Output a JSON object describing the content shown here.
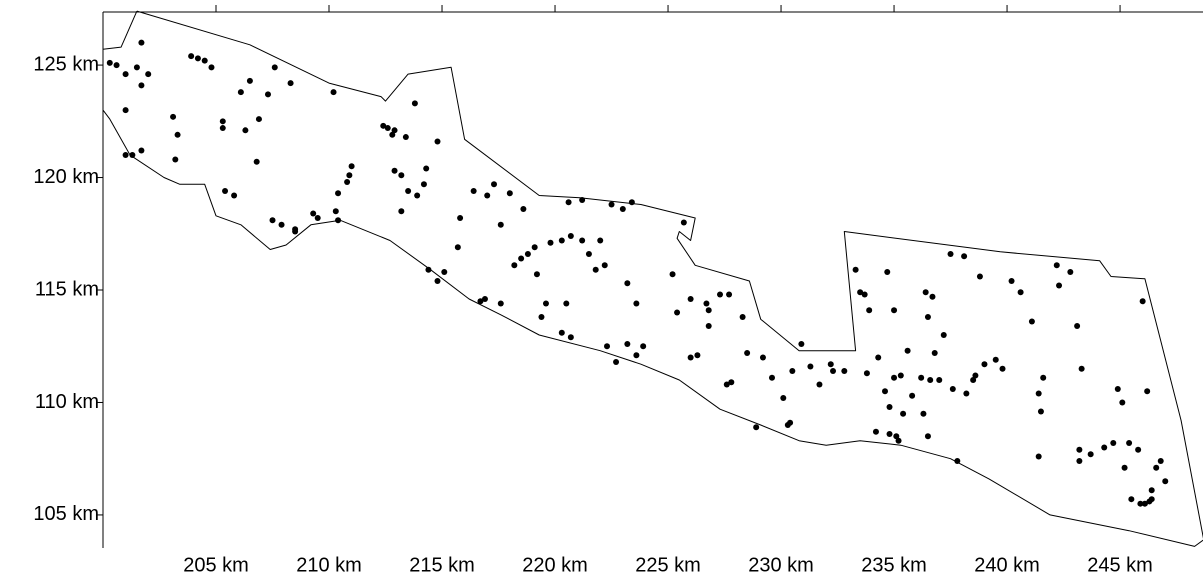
{
  "chart_data": {
    "type": "scatter",
    "xlim": [
      200,
      248.67
    ],
    "ylim": [
      103.53,
      127.36
    ],
    "xticks": [
      {
        "value": 205,
        "label": "205 km"
      },
      {
        "value": 210,
        "label": "210 km"
      },
      {
        "value": 215,
        "label": "215 km"
      },
      {
        "value": 220,
        "label": "220 km"
      },
      {
        "value": 225,
        "label": "225 km"
      },
      {
        "value": 230,
        "label": "230 km"
      },
      {
        "value": 235,
        "label": "235 km"
      },
      {
        "value": 240,
        "label": "240 km"
      },
      {
        "value": 245,
        "label": "245 km"
      }
    ],
    "yticks": [
      {
        "value": 105,
        "label": "105 km"
      },
      {
        "value": 110,
        "label": "110 km"
      },
      {
        "value": 115,
        "label": "115 km"
      },
      {
        "value": 120,
        "label": "120 km"
      },
      {
        "value": 125,
        "label": "125 km"
      }
    ],
    "color": "#000000",
    "boundary": {
      "x": [
        201.5,
        206.5,
        210.0,
        212.3,
        212.5,
        213.5,
        215.4,
        216.0,
        219.3,
        221.1,
        223.8,
        226.2,
        226.0,
        225.5,
        225.4,
        226.2,
        228.6,
        229.1,
        230.8,
        233.3,
        232.8,
        239.7,
        244.1,
        244.6,
        246.1,
        247.7,
        248.7,
        248.3,
        245.4,
        241.9,
        239.2,
        237.5,
        235.3,
        233.5,
        232.0,
        230.8,
        229.1,
        227.3,
        225.5,
        223.8,
        222.0,
        219.3,
        217.6,
        216.2,
        214.5,
        212.7,
        210.5,
        209.2,
        208.1,
        207.4,
        206.1,
        205.0,
        204.5,
        203.4,
        202.7,
        201.2,
        200.3,
        200.0,
        200.0,
        200.8,
        201.5
      ],
      "y": [
        127.4,
        125.9,
        124.2,
        123.6,
        123.4,
        124.6,
        124.9,
        121.7,
        119.2,
        119.1,
        118.8,
        118.2,
        117.2,
        117.6,
        117.3,
        116.1,
        115.4,
        113.7,
        112.3,
        112.3,
        117.6,
        116.7,
        116.3,
        115.6,
        115.5,
        109.2,
        103.9,
        103.6,
        104.3,
        105.0,
        106.6,
        107.5,
        108.1,
        108.3,
        108.1,
        108.3,
        109.0,
        109.7,
        111.0,
        111.7,
        112.3,
        113.0,
        113.9,
        114.6,
        115.9,
        117.2,
        118.1,
        117.9,
        117.0,
        116.8,
        117.9,
        118.3,
        119.7,
        119.7,
        120.0,
        121.0,
        122.6,
        123.0,
        125.7,
        125.8,
        127.4
      ]
    },
    "x": [
      200.3,
      200.6,
      201.0,
      201.5,
      201.7,
      201.7,
      202.0,
      201.0,
      201.0,
      201.3,
      201.7,
      203.1,
      203.2,
      203.3,
      203.9,
      204.2,
      204.5,
      204.8,
      205.3,
      205.3,
      205.4,
      205.8,
      206.1,
      206.3,
      206.5,
      206.9,
      206.8,
      207.3,
      207.6,
      207.5,
      207.9,
      208.3,
      208.5,
      208.5,
      209.3,
      209.5,
      210.2,
      210.3,
      210.4,
      210.4,
      210.8,
      210.9,
      211.0,
      212.4,
      212.6,
      212.8,
      212.9,
      212.9,
      213.2,
      213.2,
      213.4,
      213.5,
      213.8,
      213.9,
      214.2,
      214.3,
      214.8,
      214.4,
      214.8,
      215.1,
      215.7,
      215.8,
      216.4,
      216.7,
      216.9,
      217.0,
      217.3,
      217.6,
      218.0,
      217.6,
      218.2,
      218.5,
      218.6,
      218.8,
      219.1,
      219.4,
      219.2,
      219.6,
      219.8,
      220.3,
      220.3,
      220.5,
      220.7,
      220.6,
      220.7,
      221.2,
      221.2,
      221.5,
      221.8,
      222.0,
      222.2,
      222.3,
      222.5,
      222.7,
      223.0,
      223.4,
      223.2,
      223.2,
      223.6,
      223.6,
      223.9,
      225.2,
      225.4,
      225.7,
      226.0,
      226.0,
      226.3,
      226.7,
      226.8,
      226.8,
      227.3,
      227.7,
      227.6,
      227.8,
      228.3,
      228.5,
      228.9,
      229.2,
      229.6,
      230.1,
      230.3,
      230.4,
      230.5,
      230.9,
      231.3,
      231.7,
      232.2,
      232.3,
      232.8,
      233.3,
      233.5,
      233.7,
      233.9,
      233.8,
      234.2,
      234.3,
      234.7,
      234.6,
      234.8,
      234.8,
      235.1,
      235.2,
      235.0,
      235.3,
      235.0,
      235.4,
      235.6,
      235.8,
      236.2,
      236.3,
      236.6,
      236.5,
      236.4,
      236.7,
      236.5,
      236.8,
      237.0,
      237.2,
      237.5,
      237.6,
      237.8,
      238.1,
      238.2,
      238.5,
      238.6,
      238.8,
      239.0,
      239.5,
      239.8,
      240.2,
      240.6,
      241.1,
      241.4,
      241.4,
      241.6,
      241.5,
      242.3,
      242.2,
      242.8,
      243.1,
      243.3,
      243.2,
      243.2,
      243.7,
      244.3,
      244.7,
      244.9,
      245.1,
      245.4,
      245.2,
      245.5,
      245.8,
      245.9,
      246.1,
      246.3,
      246.4,
      246.4,
      246.8,
      246.2,
      246.0,
      247.0,
      246.6
    ],
    "y": [
      125.1,
      125.0,
      124.6,
      124.9,
      126.0,
      124.1,
      124.6,
      123.0,
      121.0,
      121.0,
      121.2,
      122.7,
      120.8,
      121.9,
      125.4,
      125.3,
      125.2,
      124.9,
      122.5,
      122.2,
      119.4,
      119.2,
      123.8,
      122.1,
      124.3,
      122.6,
      120.7,
      123.7,
      124.9,
      118.1,
      117.9,
      124.2,
      117.7,
      117.6,
      118.4,
      118.2,
      123.8,
      118.5,
      119.3,
      118.1,
      119.8,
      120.1,
      120.5,
      122.3,
      122.2,
      121.9,
      122.1,
      120.3,
      120.1,
      118.5,
      121.8,
      119.4,
      123.3,
      119.2,
      119.7,
      120.4,
      121.6,
      115.9,
      115.4,
      115.8,
      116.9,
      118.2,
      119.4,
      114.5,
      114.6,
      119.2,
      119.7,
      114.4,
      119.3,
      117.9,
      116.1,
      116.4,
      118.6,
      116.6,
      116.9,
      113.8,
      115.7,
      114.4,
      117.1,
      117.2,
      113.1,
      114.4,
      112.9,
      118.9,
      117.4,
      119.0,
      117.2,
      116.6,
      115.9,
      117.2,
      116.1,
      112.5,
      118.8,
      111.8,
      118.6,
      118.9,
      115.3,
      112.6,
      114.4,
      112.1,
      112.5,
      115.7,
      114.0,
      118.0,
      114.6,
      112.0,
      112.1,
      114.4,
      114.1,
      113.4,
      114.8,
      114.8,
      110.8,
      110.9,
      113.8,
      112.2,
      108.9,
      112.0,
      111.1,
      110.2,
      109.0,
      109.1,
      111.4,
      112.6,
      111.6,
      110.8,
      111.7,
      111.4,
      111.4,
      115.9,
      114.9,
      114.8,
      114.1,
      111.3,
      108.7,
      112.0,
      115.8,
      110.5,
      109.8,
      108.6,
      108.5,
      108.3,
      111.1,
      111.2,
      114.1,
      109.5,
      112.3,
      110.3,
      111.1,
      109.5,
      111.0,
      108.5,
      114.9,
      114.7,
      113.8,
      112.2,
      111.0,
      113.0,
      116.6,
      110.6,
      107.4,
      116.5,
      110.4,
      111.0,
      111.2,
      115.6,
      111.7,
      111.9,
      111.5,
      115.4,
      114.9,
      113.6,
      107.6,
      110.4,
      111.1,
      109.6,
      115.2,
      116.1,
      115.8,
      113.4,
      111.5,
      107.9,
      107.4,
      107.7,
      108.0,
      108.2,
      110.6,
      110.0,
      108.2,
      107.1,
      105.7,
      107.9,
      105.5,
      105.5,
      105.6,
      105.7,
      106.1,
      107.4,
      110.5,
      114.5,
      106.5,
      107.1
    ]
  }
}
